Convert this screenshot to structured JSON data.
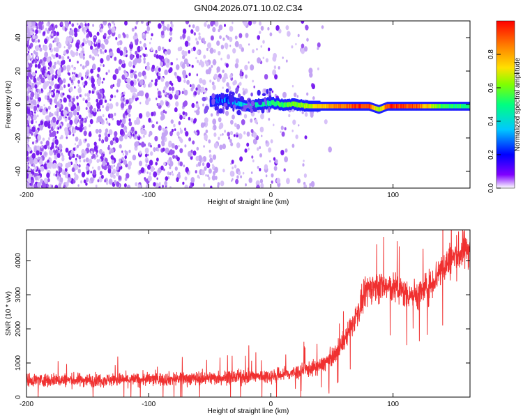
{
  "title": "GN04.2026.071.10.02.C34",
  "chart_data": [
    {
      "type": "heatmap",
      "xlabel": "Height of straight line (km)",
      "ylabel": "Frequency (Hz)",
      "xlim": [
        -200,
        163
      ],
      "ylim": [
        -50,
        50
      ],
      "xticks": [
        -200,
        -100,
        0,
        100
      ],
      "yticks": [
        -40,
        -20,
        0,
        20,
        40
      ],
      "colorbar": {
        "label": "Normalized spectral amplitude",
        "range": [
          0,
          1
        ],
        "ticks": [
          "0.0",
          "0.2",
          "0.4",
          "0.6",
          "0.8"
        ],
        "colormap": [
          "#ffffff",
          "#8000ff",
          "#0000ff",
          "#00c8ff",
          "#00ff80",
          "#80ff00",
          "#ffe000",
          "#ff8000",
          "#ff0000"
        ]
      },
      "signal_track": [
        {
          "x": -50,
          "y": 2,
          "amp": 0.25
        },
        {
          "x": -40,
          "y": 3,
          "amp": 0.3
        },
        {
          "x": -30,
          "y": 1,
          "amp": 0.35
        },
        {
          "x": -20,
          "y": -1,
          "amp": 0.45
        },
        {
          "x": -10,
          "y": 0,
          "amp": 0.45
        },
        {
          "x": 0,
          "y": 1,
          "amp": 0.5
        },
        {
          "x": 10,
          "y": 0,
          "amp": 0.55
        },
        {
          "x": 20,
          "y": 0,
          "amp": 0.6
        },
        {
          "x": 30,
          "y": -1,
          "amp": 0.65
        },
        {
          "x": 40,
          "y": -1,
          "amp": 0.8
        },
        {
          "x": 60,
          "y": -1,
          "amp": 0.9
        },
        {
          "x": 80,
          "y": -1,
          "amp": 0.95
        },
        {
          "x": 88,
          "y": -3,
          "amp": 0.6
        },
        {
          "x": 95,
          "y": -1,
          "amp": 0.95
        },
        {
          "x": 120,
          "y": -1,
          "amp": 0.9
        },
        {
          "x": 140,
          "y": -1,
          "amp": 0.55
        },
        {
          "x": 163,
          "y": -1,
          "amp": 0.5
        }
      ]
    },
    {
      "type": "line",
      "xlabel": "Height of straight line (km)",
      "ylabel": "SNR (10 * v/v)",
      "xlim": [
        -200,
        163
      ],
      "ylim": [
        0,
        4900
      ],
      "xticks": [
        -200,
        -100,
        0,
        100
      ],
      "yticks": [
        0,
        1000,
        2000,
        3000,
        4000
      ],
      "color": "#f03030",
      "series": [
        {
          "x": [
            -200,
            -150,
            -100,
            -50,
            0,
            20,
            40,
            50,
            60,
            65,
            70,
            80,
            90,
            100,
            110,
            120,
            130,
            140,
            150,
            163
          ],
          "values": [
            500,
            500,
            520,
            560,
            620,
            720,
            900,
            1150,
            1650,
            2000,
            2400,
            3200,
            3250,
            3200,
            3050,
            3000,
            3250,
            3800,
            4100,
            4400
          ]
        }
      ]
    }
  ]
}
